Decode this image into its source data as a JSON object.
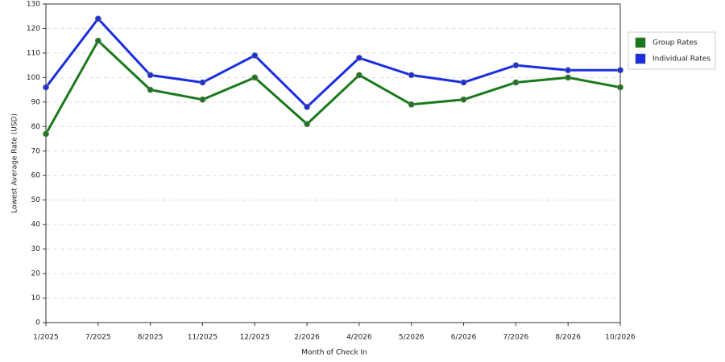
{
  "chart_data": {
    "type": "line",
    "x_label": "Month of Check In",
    "y_label": "Lowest Average Rate (USD)",
    "categories": [
      "1/2025",
      "7/2025",
      "8/2025",
      "11/2025",
      "12/2025",
      "2/2026",
      "4/2026",
      "5/2026",
      "6/2026",
      "7/2026",
      "8/2026",
      "10/2026"
    ],
    "series": [
      {
        "name": "Group Rates",
        "color": "#1a7a1a",
        "values": [
          77,
          115,
          95,
          91,
          100,
          81,
          101,
          89,
          91,
          98,
          100,
          96
        ]
      },
      {
        "name": "Individual Rates",
        "color": "#1a2ee0",
        "values": [
          96,
          124,
          101,
          98,
          109,
          88,
          108,
          101,
          98,
          105,
          103,
          103
        ]
      }
    ],
    "ylim": [
      0,
      130
    ],
    "yticks": [
      0,
      10,
      20,
      30,
      40,
      50,
      60,
      70,
      80,
      90,
      100,
      110,
      120,
      130
    ],
    "grid": true,
    "legend": "right"
  }
}
